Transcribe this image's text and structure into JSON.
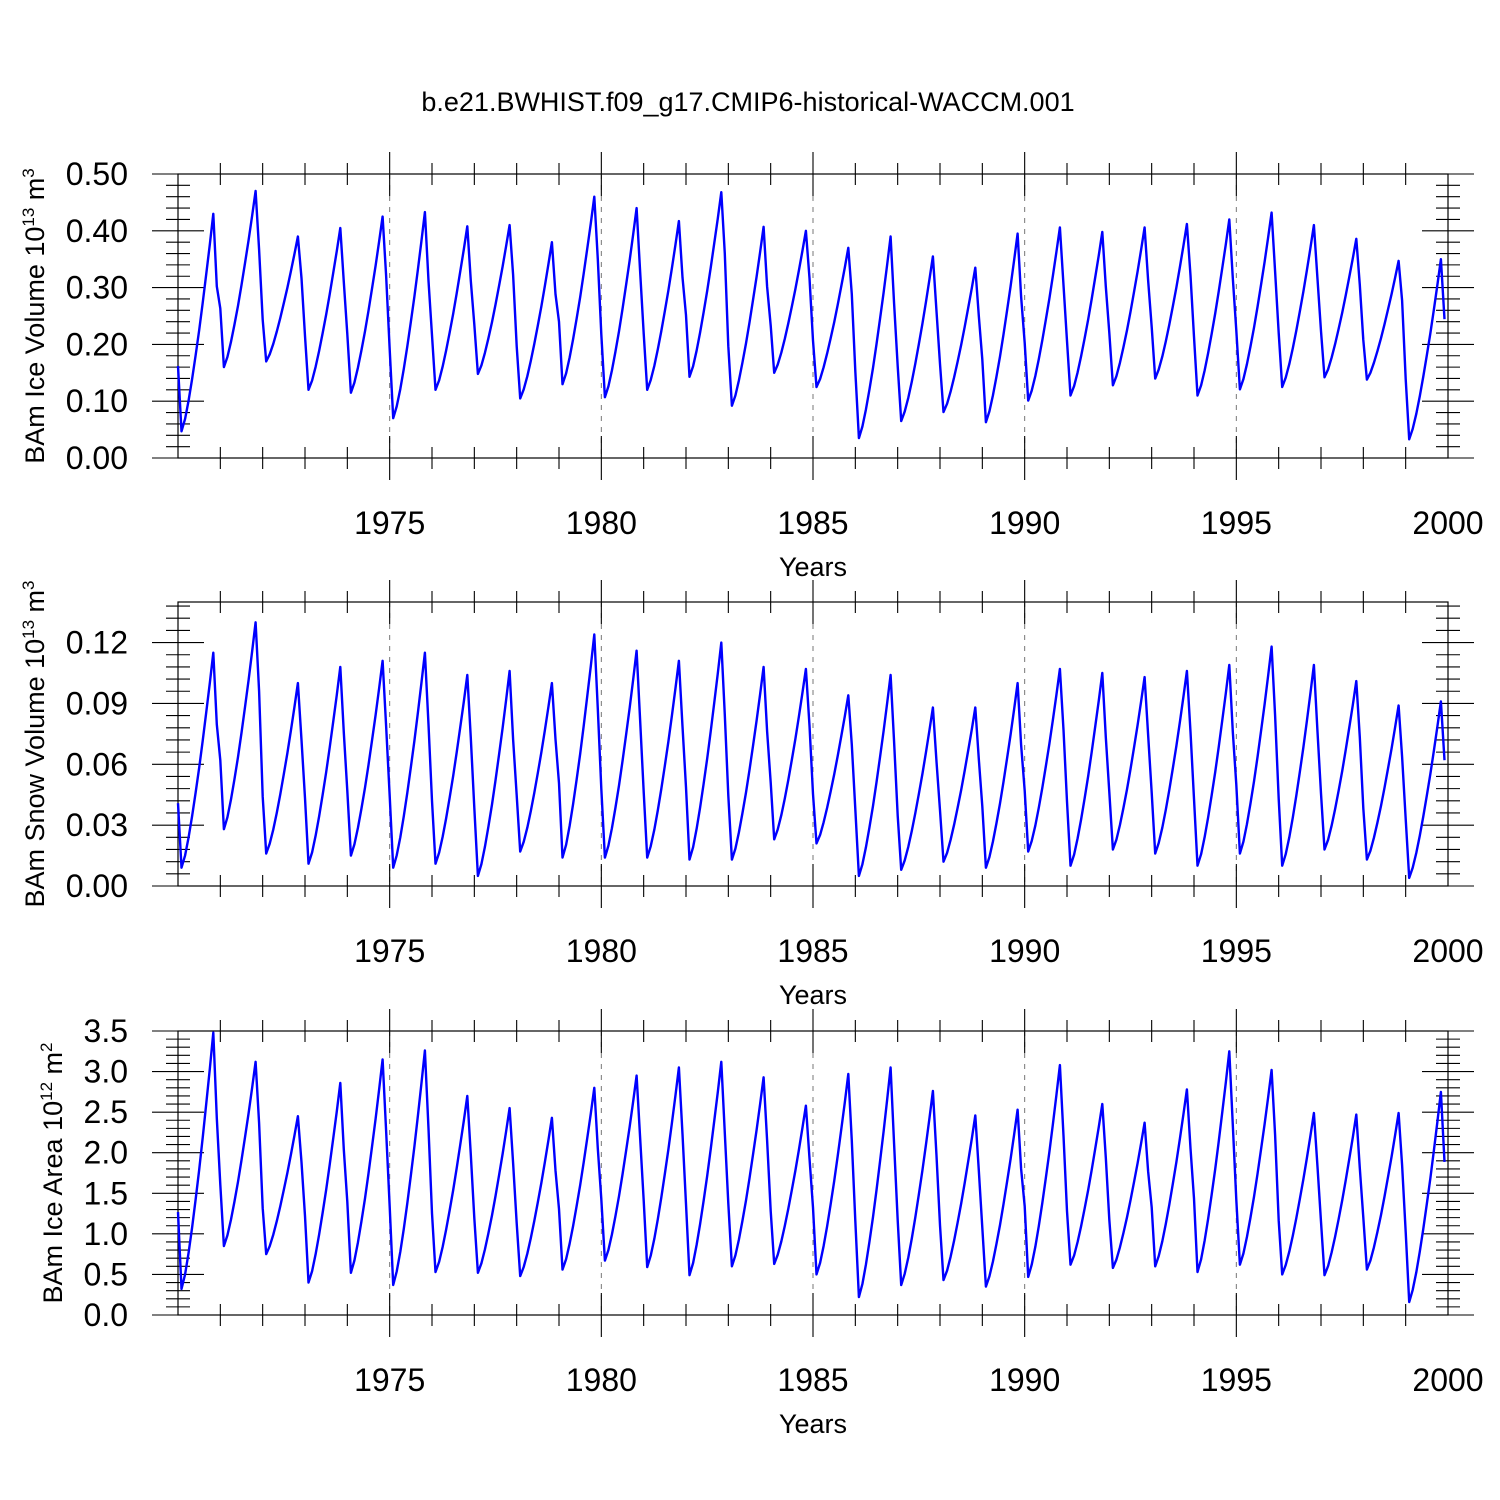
{
  "title": "b.e21.BWHIST.f09_g17.CMIP6-historical-WACCM.001",
  "colors": {
    "series": "#0000ff",
    "axis": "#000000",
    "grid": "#777777"
  },
  "chart_data": [
    {
      "type": "line",
      "ylabel_main": "BAm Ice Volume 10",
      "ylabel_exp": "13",
      "ylabel_unit": " m",
      "ylabel_unit_exp": "3",
      "xlabel": "Years",
      "xlim": [
        1970,
        2000
      ],
      "ylim": [
        0,
        0.5
      ],
      "xticks": [
        1975,
        1980,
        1985,
        1990,
        1995,
        2000
      ],
      "xtick_labels": [
        "1975",
        "1980",
        "1985",
        "1990",
        "1995",
        "2000"
      ],
      "yticks": [
        0,
        0.1,
        0.2,
        0.3,
        0.4,
        0.5
      ],
      "ytick_labels": [
        "0.00",
        "0.10",
        "0.20",
        "0.30",
        "0.40",
        "0.50"
      ],
      "grid": "dashed vertical at labeled years",
      "series": [
        {
          "name": "BAm Ice Volume",
          "min": [
            0.047,
            0.16,
            0.17,
            0.12,
            0.115,
            0.07,
            0.12,
            0.148,
            0.105,
            0.13,
            0.107,
            0.12,
            0.143,
            0.092,
            0.15,
            0.125,
            0.035,
            0.065,
            0.081,
            0.063,
            0.101,
            0.11,
            0.128,
            0.14,
            0.11,
            0.121,
            0.125,
            0.142,
            0.138,
            0.033
          ],
          "max": [
            0.43,
            0.47,
            0.39,
            0.405,
            0.425,
            0.433,
            0.408,
            0.41,
            0.38,
            0.46,
            0.44,
            0.417,
            0.468,
            0.407,
            0.4,
            0.37,
            0.39,
            0.355,
            0.335,
            0.395,
            0.406,
            0.398,
            0.406,
            0.412,
            0.42,
            0.432,
            0.41,
            0.386,
            0.347,
            0.35
          ]
        }
      ]
    },
    {
      "type": "line",
      "ylabel_main": "BAm Snow Volume 10",
      "ylabel_exp": "13",
      "ylabel_unit": " m",
      "ylabel_unit_exp": "3",
      "xlabel": "Years",
      "xlim": [
        1970,
        2000
      ],
      "ylim": [
        0,
        0.14
      ],
      "xticks": [
        1975,
        1980,
        1985,
        1990,
        1995,
        2000
      ],
      "xtick_labels": [
        "1975",
        "1980",
        "1985",
        "1990",
        "1995",
        "2000"
      ],
      "yticks": [
        0,
        0.03,
        0.06,
        0.09,
        0.12
      ],
      "ytick_labels": [
        "0.00",
        "0.03",
        "0.06",
        "0.09",
        "0.12"
      ],
      "grid": "dashed vertical at labeled years",
      "series": [
        {
          "name": "BAm Snow Volume",
          "min": [
            0.009,
            0.028,
            0.016,
            0.011,
            0.015,
            0.009,
            0.011,
            0.005,
            0.017,
            0.014,
            0.014,
            0.014,
            0.013,
            0.013,
            0.023,
            0.021,
            0.005,
            0.008,
            0.012,
            0.009,
            0.017,
            0.01,
            0.018,
            0.016,
            0.01,
            0.016,
            0.01,
            0.018,
            0.013,
            0.004
          ],
          "max": [
            0.115,
            0.13,
            0.1,
            0.108,
            0.111,
            0.115,
            0.104,
            0.106,
            0.1,
            0.124,
            0.116,
            0.111,
            0.12,
            0.108,
            0.107,
            0.094,
            0.104,
            0.088,
            0.088,
            0.1,
            0.107,
            0.105,
            0.103,
            0.106,
            0.109,
            0.118,
            0.109,
            0.101,
            0.089,
            0.091
          ]
        }
      ]
    },
    {
      "type": "line",
      "ylabel_main": "BAm Ice Area 10",
      "ylabel_exp": "12",
      "ylabel_unit": " m",
      "ylabel_unit_exp": "2",
      "xlabel": "Years",
      "xlim": [
        1970,
        2000
      ],
      "ylim": [
        0,
        3.5
      ],
      "xticks": [
        1975,
        1980,
        1985,
        1990,
        1995,
        2000
      ],
      "xtick_labels": [
        "1975",
        "1980",
        "1985",
        "1990",
        "1995",
        "2000"
      ],
      "yticks": [
        0,
        0.5,
        1.0,
        1.5,
        2.0,
        2.5,
        3.0,
        3.5
      ],
      "ytick_labels": [
        "0.0",
        "0.5",
        "1.0",
        "1.5",
        "2.0",
        "2.5",
        "3.0",
        "3.5"
      ],
      "grid": "dashed vertical at labeled years",
      "series": [
        {
          "name": "BAm Ice Area",
          "min": [
            0.32,
            0.85,
            0.75,
            0.4,
            0.52,
            0.37,
            0.53,
            0.52,
            0.48,
            0.56,
            0.67,
            0.59,
            0.49,
            0.6,
            0.63,
            0.5,
            0.22,
            0.37,
            0.43,
            0.35,
            0.47,
            0.62,
            0.58,
            0.6,
            0.53,
            0.62,
            0.5,
            0.49,
            0.56,
            0.16
          ],
          "max": [
            3.48,
            3.12,
            2.45,
            2.86,
            3.15,
            3.26,
            2.7,
            2.55,
            2.43,
            2.8,
            2.95,
            3.05,
            3.12,
            2.93,
            2.58,
            2.97,
            3.05,
            2.76,
            2.46,
            2.53,
            3.08,
            2.6,
            2.37,
            2.78,
            3.25,
            3.02,
            2.49,
            2.47,
            2.49,
            2.75
          ]
        }
      ]
    }
  ]
}
